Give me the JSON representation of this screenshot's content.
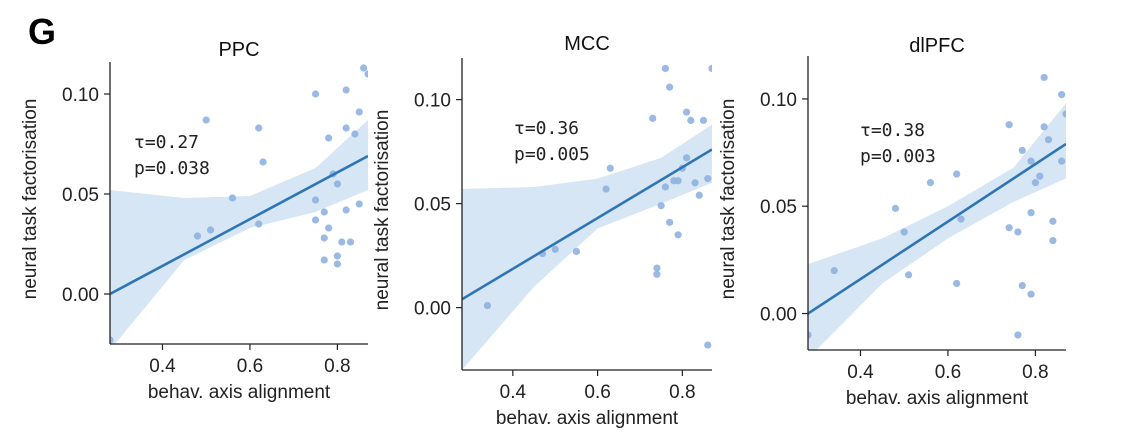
{
  "figure": {
    "panel_label": "G",
    "xlabel": "behav. axis alignment",
    "ylabel": "neural task factorisation",
    "colors": {
      "point": "#8fb1e0",
      "line": "#2e75b6",
      "band": "#d6e6f5",
      "axis": "#222222"
    }
  },
  "chart_data": [
    {
      "type": "scatter",
      "title": "PPC",
      "xlabel": "behav. axis alignment",
      "ylabel": "neural task factorisation",
      "xlim": [
        0.28,
        0.87
      ],
      "ylim": [
        -0.025,
        0.116
      ],
      "xticks": [
        0.4,
        0.6,
        0.8
      ],
      "xtick_labels": [
        "0.4",
        "0.6",
        "0.8"
      ],
      "yticks": [
        0.0,
        0.05,
        0.1
      ],
      "ytick_labels": [
        "0.00",
        "0.05",
        "0.10"
      ],
      "stat_tau": "τ=0.27",
      "stat_p": "p=0.038",
      "fit": {
        "x": [
          0.28,
          0.87
        ],
        "y": [
          0.0,
          0.069
        ]
      },
      "band_upper": {
        "x": [
          0.28,
          0.45,
          0.6,
          0.75,
          0.87
        ],
        "y": [
          0.052,
          0.048,
          0.049,
          0.063,
          0.087
        ]
      },
      "band_lower": {
        "x": [
          0.28,
          0.45,
          0.6,
          0.75,
          0.87
        ],
        "y": [
          -0.028,
          0.017,
          0.033,
          0.041,
          0.052
        ]
      },
      "points": [
        [
          0.28,
          -0.023
        ],
        [
          0.48,
          0.029
        ],
        [
          0.5,
          0.087
        ],
        [
          0.51,
          0.032
        ],
        [
          0.56,
          0.048
        ],
        [
          0.62,
          0.035
        ],
        [
          0.62,
          0.083
        ],
        [
          0.63,
          0.066
        ],
        [
          0.75,
          0.1
        ],
        [
          0.75,
          0.047
        ],
        [
          0.75,
          0.037
        ],
        [
          0.77,
          0.041
        ],
        [
          0.77,
          0.028
        ],
        [
          0.77,
          0.017
        ],
        [
          0.78,
          0.078
        ],
        [
          0.78,
          0.033
        ],
        [
          0.79,
          0.06
        ],
        [
          0.8,
          0.055
        ],
        [
          0.8,
          0.019
        ],
        [
          0.8,
          0.015
        ],
        [
          0.81,
          0.026
        ],
        [
          0.82,
          0.102
        ],
        [
          0.82,
          0.083
        ],
        [
          0.82,
          0.042
        ],
        [
          0.83,
          0.026
        ],
        [
          0.84,
          0.08
        ],
        [
          0.85,
          0.091
        ],
        [
          0.85,
          0.045
        ],
        [
          0.86,
          0.113
        ],
        [
          0.87,
          0.11
        ]
      ]
    },
    {
      "type": "scatter",
      "title": "MCC",
      "xlabel": "behav. axis alignment",
      "ylabel": "neural task factorisation",
      "xlim": [
        0.28,
        0.87
      ],
      "ylim": [
        -0.03,
        0.12
      ],
      "xticks": [
        0.4,
        0.6,
        0.8
      ],
      "xtick_labels": [
        "0.4",
        "0.6",
        "0.8"
      ],
      "yticks": [
        0.0,
        0.05,
        0.1
      ],
      "ytick_labels": [
        "0.00",
        "0.05",
        "0.10"
      ],
      "stat_tau": "τ=0.36",
      "stat_p": "p=0.005",
      "fit": {
        "x": [
          0.28,
          0.87
        ],
        "y": [
          0.004,
          0.076
        ]
      },
      "band_upper": {
        "x": [
          0.28,
          0.45,
          0.6,
          0.75,
          0.87
        ],
        "y": [
          0.057,
          0.058,
          0.062,
          0.072,
          0.088
        ]
      },
      "band_lower": {
        "x": [
          0.28,
          0.45,
          0.6,
          0.75,
          0.87
        ],
        "y": [
          -0.03,
          0.01,
          0.038,
          0.05,
          0.06
        ]
      },
      "points": [
        [
          0.34,
          0.001
        ],
        [
          0.47,
          0.026
        ],
        [
          0.5,
          0.028
        ],
        [
          0.55,
          0.027
        ],
        [
          0.62,
          0.057
        ],
        [
          0.63,
          0.067
        ],
        [
          0.73,
          0.091
        ],
        [
          0.74,
          0.016
        ],
        [
          0.74,
          0.019
        ],
        [
          0.75,
          0.049
        ],
        [
          0.76,
          0.058
        ],
        [
          0.76,
          0.115
        ],
        [
          0.77,
          0.106
        ],
        [
          0.77,
          0.041
        ],
        [
          0.78,
          0.061
        ],
        [
          0.79,
          0.035
        ],
        [
          0.79,
          0.061
        ],
        [
          0.8,
          0.067
        ],
        [
          0.81,
          0.094
        ],
        [
          0.81,
          0.072
        ],
        [
          0.82,
          0.09
        ],
        [
          0.83,
          0.06
        ],
        [
          0.84,
          0.054
        ],
        [
          0.85,
          0.09
        ],
        [
          0.86,
          0.062
        ],
        [
          0.86,
          -0.018
        ],
        [
          0.87,
          0.115
        ]
      ]
    },
    {
      "type": "scatter",
      "title": "dlPFC",
      "xlabel": "behav. axis alignment",
      "ylabel": "neural task factorisation",
      "xlim": [
        0.28,
        0.87
      ],
      "ylim": [
        -0.017,
        0.12
      ],
      "xticks": [
        0.4,
        0.6,
        0.8
      ],
      "xtick_labels": [
        "0.4",
        "0.6",
        "0.8"
      ],
      "yticks": [
        0.0,
        0.05,
        0.1
      ],
      "ytick_labels": [
        "0.00",
        "0.05",
        "0.10"
      ],
      "stat_tau": "τ=0.38",
      "stat_p": "p=0.003",
      "fit": {
        "x": [
          0.28,
          0.87
        ],
        "y": [
          0.0,
          0.079
        ]
      },
      "band_upper": {
        "x": [
          0.28,
          0.45,
          0.6,
          0.75,
          0.87
        ],
        "y": [
          0.023,
          0.035,
          0.05,
          0.068,
          0.098
        ]
      },
      "band_lower": {
        "x": [
          0.28,
          0.45,
          0.6,
          0.75,
          0.87
        ],
        "y": [
          -0.021,
          0.014,
          0.035,
          0.052,
          0.063
        ]
      },
      "points": [
        [
          0.28,
          -0.01
        ],
        [
          0.34,
          0.02
        ],
        [
          0.48,
          0.049
        ],
        [
          0.5,
          0.038
        ],
        [
          0.51,
          0.018
        ],
        [
          0.56,
          0.061
        ],
        [
          0.62,
          0.014
        ],
        [
          0.62,
          0.065
        ],
        [
          0.63,
          0.044
        ],
        [
          0.74,
          0.088
        ],
        [
          0.74,
          0.04
        ],
        [
          0.76,
          0.038
        ],
        [
          0.76,
          -0.01
        ],
        [
          0.77,
          0.076
        ],
        [
          0.77,
          0.013
        ],
        [
          0.79,
          0.071
        ],
        [
          0.79,
          0.009
        ],
        [
          0.79,
          0.047
        ],
        [
          0.8,
          0.061
        ],
        [
          0.81,
          0.064
        ],
        [
          0.82,
          0.11
        ],
        [
          0.82,
          0.087
        ],
        [
          0.83,
          0.081
        ],
        [
          0.84,
          0.034
        ],
        [
          0.84,
          0.043
        ],
        [
          0.86,
          0.102
        ],
        [
          0.86,
          0.071
        ],
        [
          0.87,
          0.093
        ]
      ]
    }
  ]
}
